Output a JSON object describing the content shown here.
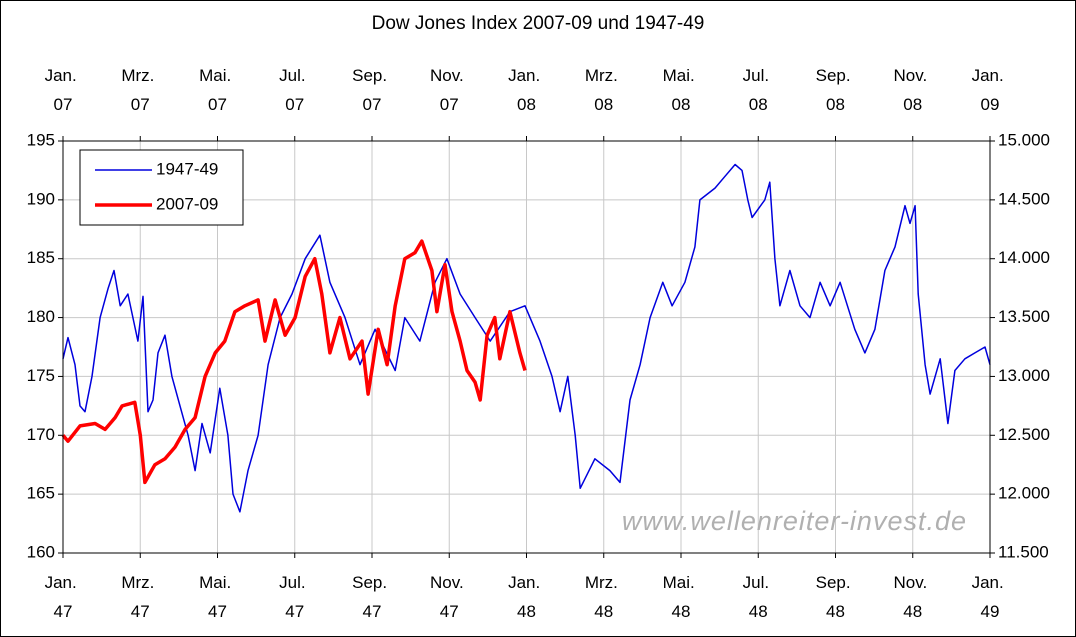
{
  "chart_data": {
    "type": "line",
    "title": "Dow Jones Index 2007-09 und 1947-49",
    "annotation": "www.wellenreiter-invest.de",
    "xlim": [
      0,
      24
    ],
    "xticks": [
      {
        "value": 0,
        "label": "Jan. 47"
      },
      {
        "value": 2,
        "label": "Mrz. 47"
      },
      {
        "value": 4,
        "label": "Mai. 47"
      },
      {
        "value": 6,
        "label": "Jul. 47"
      },
      {
        "value": 8,
        "label": "Sep. 47"
      },
      {
        "value": 10,
        "label": "Nov. 47"
      },
      {
        "value": 12,
        "label": "Jan. 48"
      },
      {
        "value": 14,
        "label": "Mrz. 48"
      },
      {
        "value": 16,
        "label": "Mai. 48"
      },
      {
        "value": 18,
        "label": "Jul. 48"
      },
      {
        "value": 20,
        "label": "Sep. 48"
      },
      {
        "value": 22,
        "label": "Nov. 48"
      },
      {
        "value": 24,
        "label": "Jan. 49"
      }
    ],
    "x2ticks": [
      {
        "value": 0,
        "label": "Jan. 07"
      },
      {
        "value": 2,
        "label": "Mrz. 07"
      },
      {
        "value": 4,
        "label": "Mai. 07"
      },
      {
        "value": 6,
        "label": "Jul. 07"
      },
      {
        "value": 8,
        "label": "Sep. 07"
      },
      {
        "value": 10,
        "label": "Nov. 07"
      },
      {
        "value": 12,
        "label": "Jan. 08"
      },
      {
        "value": 14,
        "label": "Mrz. 08"
      },
      {
        "value": 16,
        "label": "Mai. 08"
      },
      {
        "value": 18,
        "label": "Jul. 08"
      },
      {
        "value": 20,
        "label": "Sep. 08"
      },
      {
        "value": 22,
        "label": "Nov. 08"
      },
      {
        "value": 24,
        "label": "Jan. 09"
      }
    ],
    "ylim": [
      160,
      195
    ],
    "yticks": [
      160,
      165,
      170,
      175,
      180,
      185,
      190,
      195
    ],
    "y2lim": [
      11500,
      15000
    ],
    "y2ticks": [
      {
        "value": 11500,
        "label": "11.500"
      },
      {
        "value": 12000,
        "label": "12.000"
      },
      {
        "value": 12500,
        "label": "12.500"
      },
      {
        "value": 13000,
        "label": "13.000"
      },
      {
        "value": 13500,
        "label": "13.500"
      },
      {
        "value": 14000,
        "label": "14.000"
      },
      {
        "value": 14500,
        "label": "14.500"
      },
      {
        "value": 15000,
        "label": "15.000"
      }
    ],
    "grid": true,
    "legend": "top-left",
    "series": [
      {
        "name": "1947-49",
        "color": "#0000dd",
        "width": 1.5,
        "x": [
          0,
          0.13,
          0.31,
          0.44,
          0.57,
          0.75,
          0.96,
          1.17,
          1.32,
          1.48,
          1.68,
          1.94,
          2.07,
          2.2,
          2.33,
          2.46,
          2.64,
          2.82,
          3.03,
          3.24,
          3.42,
          3.6,
          3.81,
          4.06,
          4.27,
          4.4,
          4.58,
          4.79,
          5.05,
          5.31,
          5.62,
          5.93,
          6.27,
          6.65,
          6.91,
          7.3,
          7.69,
          8.08,
          8.6,
          8.85,
          9.24,
          9.63,
          9.94,
          10.28,
          10.67,
          11.06,
          11.57,
          11.96,
          12.35,
          12.66,
          12.87,
          13.07,
          13.26,
          13.39,
          13.77,
          14.16,
          14.42,
          14.68,
          14.94,
          15.2,
          15.53,
          15.77,
          16.1,
          16.36,
          16.49,
          16.88,
          17.14,
          17.4,
          17.58,
          17.73,
          17.84,
          18.17,
          18.3,
          18.43,
          18.56,
          18.82,
          19.08,
          19.34,
          19.6,
          19.86,
          20.12,
          20.5,
          20.76,
          21.02,
          21.28,
          21.54,
          21.8,
          21.93,
          22.06,
          22.14,
          22.32,
          22.45,
          22.71,
          22.91,
          23.09,
          23.35,
          23.61,
          23.87,
          24
        ],
        "values": [
          176.5,
          178.3,
          176,
          172.5,
          172,
          175,
          180,
          182.5,
          184,
          181,
          182,
          178,
          181.8,
          172,
          173,
          177,
          178.5,
          175,
          172.5,
          170,
          167,
          171,
          168.5,
          174,
          170,
          165,
          163.5,
          167,
          170,
          176,
          180,
          182,
          185,
          187,
          183,
          180,
          176,
          179,
          175.5,
          180,
          178,
          183,
          185,
          182,
          180,
          178,
          180.5,
          181,
          178,
          175,
          172,
          175,
          170,
          165.5,
          168,
          167,
          166,
          173,
          176,
          180,
          183,
          181,
          183,
          186,
          190,
          191,
          192,
          193,
          192.5,
          190,
          188.5,
          190,
          191.5,
          185,
          181,
          184,
          181,
          180,
          183,
          181,
          183,
          179,
          177,
          179,
          184,
          186,
          189.5,
          188,
          189.5,
          182,
          176,
          173.5,
          176.5,
          171,
          175.5,
          176.5,
          177,
          177.5,
          176
        ]
      },
      {
        "name": "2007-09",
        "color": "#ff0000",
        "width": 3.5,
        "axis": "y2",
        "x": [
          0,
          0.13,
          0.44,
          0.83,
          1.09,
          1.35,
          1.53,
          1.86,
          2.0,
          2.12,
          2.38,
          2.64,
          2.9,
          3.16,
          3.42,
          3.68,
          3.94,
          4.19,
          4.45,
          4.71,
          5.05,
          5.23,
          5.49,
          5.75,
          6.01,
          6.27,
          6.52,
          6.7,
          6.91,
          7.17,
          7.43,
          7.74,
          7.9,
          8.16,
          8.39,
          8.6,
          8.85,
          9.11,
          9.29,
          9.55,
          9.68,
          9.89,
          10.07,
          10.28,
          10.46,
          10.67,
          10.8,
          10.98,
          11.18,
          11.31,
          11.57,
          11.83,
          11.96
        ],
        "values": [
          12500,
          12450,
          12580,
          12600,
          12550,
          12650,
          12750,
          12780,
          12500,
          12100,
          12250,
          12300,
          12400,
          12550,
          12650,
          13000,
          13200,
          13300,
          13550,
          13600,
          13650,
          13300,
          13650,
          13350,
          13500,
          13850,
          14000,
          13700,
          13200,
          13500,
          13150,
          13300,
          12850,
          13400,
          13100,
          13600,
          14000,
          14050,
          14150,
          13900,
          13550,
          13950,
          13550,
          13300,
          13050,
          12950,
          12800,
          13350,
          13500,
          13150,
          13550,
          13200,
          13050
        ]
      }
    ]
  }
}
